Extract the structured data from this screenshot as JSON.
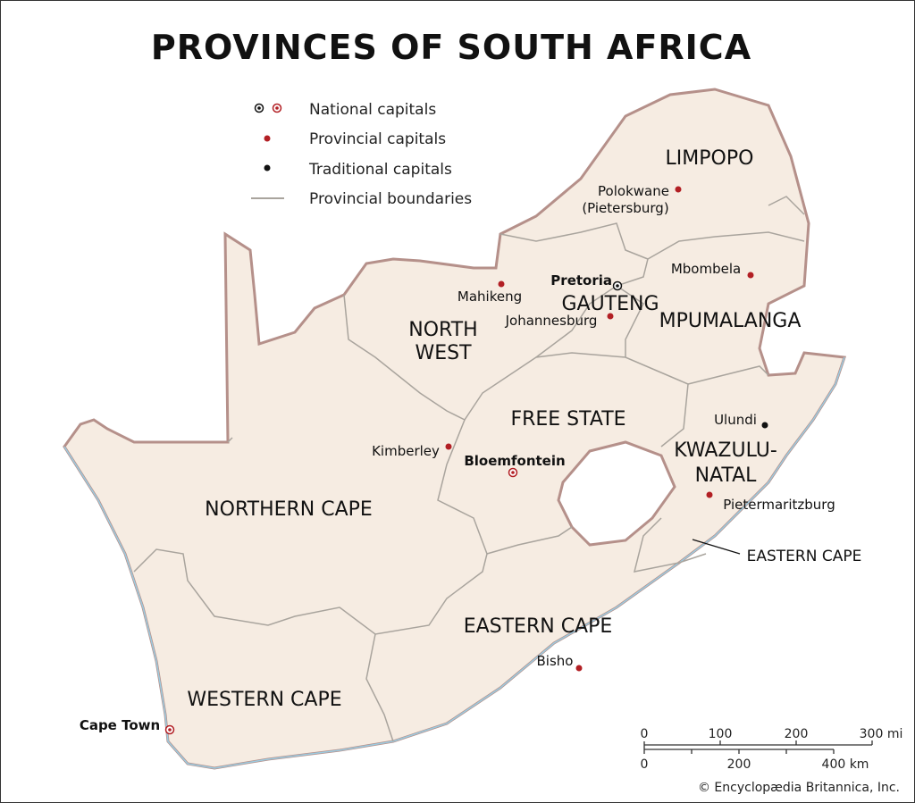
{
  "title": "PROVINCES OF SOUTH AFRICA",
  "colors": {
    "land": "#f6ece2",
    "border": "#b5908a",
    "boundary": "#a9a49d",
    "coast": "#9ccbe0",
    "capital": "#b21f24",
    "traditional": "#111111"
  },
  "legend": [
    {
      "icon": "national-capital-icon",
      "label": "National capitals"
    },
    {
      "icon": "provincial-capital-icon",
      "label": "Provincial capitals"
    },
    {
      "icon": "traditional-capital-icon",
      "label": "Traditional capitals"
    },
    {
      "icon": "boundary-line-icon",
      "label": "Provincial boundaries"
    }
  ],
  "provinces": [
    "LIMPOPO",
    "GAUTENG",
    "MPUMALANGA",
    "NORTH",
    "WEST",
    "FREE STATE",
    "KWAZULU-",
    "NATAL",
    "NORTHERN CAPE",
    "EASTERN CAPE",
    "WESTERN CAPE",
    "EASTERN CAPE"
  ],
  "cities": [
    "Polokwane",
    "(Pietersburg)",
    "Pretoria",
    "Mbombela",
    "Mahikeng",
    "Johannesburg",
    "Ulundi",
    "Kimberley",
    "Bloemfontein",
    "Pietermaritzburg",
    "Bisho",
    "Cape Town"
  ],
  "scale": {
    "mi": [
      "0",
      "100",
      "200",
      "300 mi"
    ],
    "km": [
      "0",
      "200",
      "400 km"
    ]
  },
  "copyright": "© Encyclopædia Britannica, Inc."
}
